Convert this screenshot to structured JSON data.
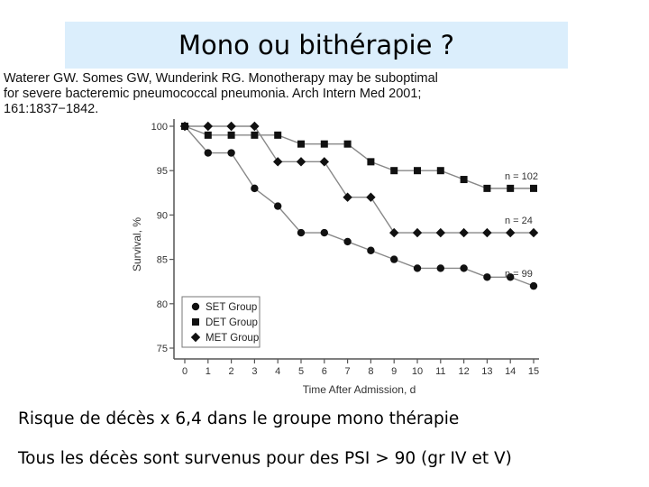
{
  "slide": {
    "title": "Mono ou bithérapie ?",
    "citation_lines": [
      "Waterer GW. Somes GW, Wunderink RG. Monotherapy may be suboptimal",
      "for severe bacteremic pneumococcal pneumonia. Arch Intern Med 2001;",
      "161:1837−1842."
    ],
    "line1": "Risque de décès x 6,4 dans le groupe mono thérapie",
    "line2": "Tous les décès sont survenus pour des PSI > 90 (gr IV et V)"
  },
  "chart_data": {
    "type": "line",
    "xlabel": "Time After Admission, d",
    "ylabel": "Survival, %",
    "xlim": [
      0,
      15
    ],
    "ylim": [
      75,
      100
    ],
    "x_ticks": [
      0,
      1,
      2,
      3,
      4,
      5,
      6,
      7,
      8,
      9,
      10,
      11,
      12,
      13,
      14,
      15
    ],
    "y_ticks": [
      75,
      80,
      85,
      90,
      95,
      100
    ],
    "grid": false,
    "legend_position": "bottom-left",
    "x": [
      0,
      1,
      2,
      3,
      4,
      5,
      6,
      7,
      8,
      9,
      10,
      11,
      12,
      13,
      14,
      15
    ],
    "series": [
      {
        "name": "SET Group",
        "marker": "circle",
        "end_label": "n = 99",
        "values": [
          100,
          97,
          97,
          93,
          91,
          88,
          88,
          87,
          86,
          85,
          84,
          84,
          84,
          83,
          83,
          82
        ]
      },
      {
        "name": "DET Group",
        "marker": "square",
        "end_label": "n = 102",
        "values": [
          100,
          99,
          99,
          99,
          99,
          98,
          98,
          98,
          96,
          95,
          95,
          95,
          94,
          93,
          93,
          93
        ]
      },
      {
        "name": "MET Group",
        "marker": "diamond",
        "end_label": "n = 24",
        "values": [
          100,
          100,
          100,
          100,
          96,
          96,
          96,
          92,
          92,
          88,
          88,
          88,
          88,
          88,
          88,
          88
        ]
      }
    ],
    "colors": {
      "marker": "#111111",
      "line": "#888888",
      "axis": "#555555"
    }
  }
}
